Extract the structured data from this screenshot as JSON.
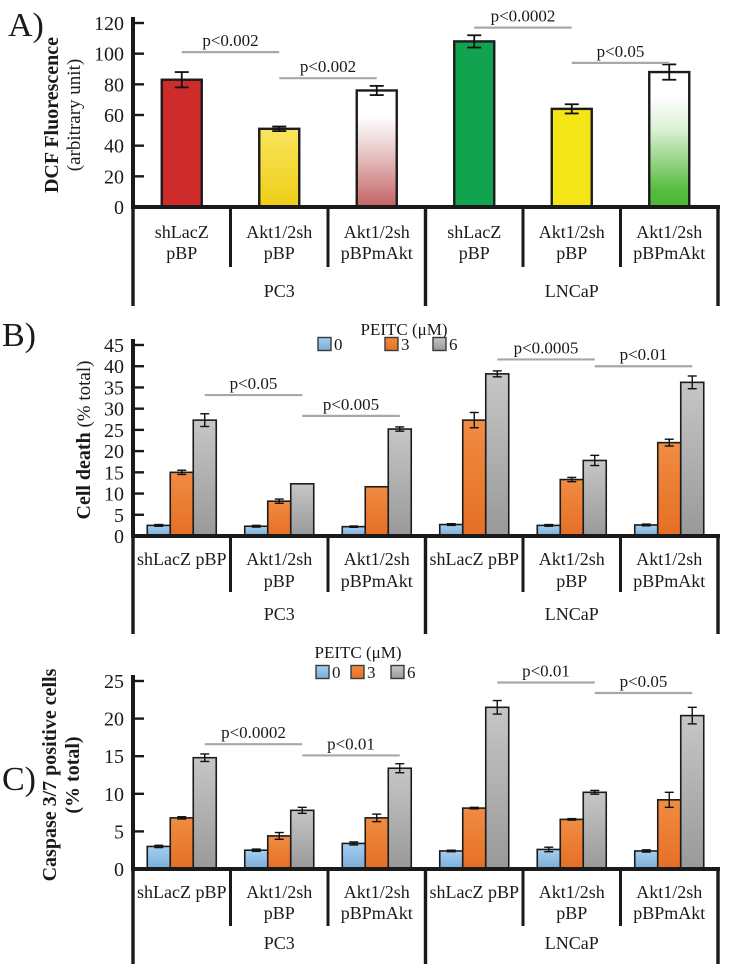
{
  "palette": {
    "red": "#CE2B2B",
    "gold_top": "#F9E45C",
    "gold_bottom": "#EFCE17",
    "yellow": "#F4E616",
    "green": "#12A351",
    "white_red_bottom": "#C46262",
    "white_green_bottom": "#55BC3C",
    "blue_top": "#A6CEEF",
    "blue_bottom": "#78ADD8",
    "orange_top": "#F08C42",
    "orange_bottom": "#E56F24",
    "gray_top": "#C6C6C6",
    "gray_bottom": "#999999",
    "bar_border": "#1C1C1C",
    "sig_line": "#A8A8A8",
    "text": "#1A1A1A"
  },
  "chart_data": [
    {
      "type": "bar",
      "panel_label": "A)",
      "ylabel_lines": [
        {
          "segments": [
            {
              "text": "DCF Fluorescence",
              "bold": true
            }
          ]
        },
        {
          "segments": [
            {
              "text": "(arbitrary unit)",
              "bold": false
            }
          ]
        }
      ],
      "ylim": [
        0,
        120
      ],
      "yticks": [
        0,
        20,
        40,
        60,
        80,
        100,
        120
      ],
      "cell_lines": [
        "PC3",
        "LNCaP"
      ],
      "legend": null,
      "groups": [
        {
          "cell_line": "PC3",
          "label_lines": [
            "shLacZ",
            "pBP"
          ],
          "values": [
            83
          ],
          "errors": [
            5
          ],
          "fills": [
            "red"
          ]
        },
        {
          "cell_line": "PC3",
          "label_lines": [
            "Akt1/2sh",
            "pBP"
          ],
          "values": [
            51
          ],
          "errors": [
            1.5
          ],
          "fills": [
            "gold"
          ]
        },
        {
          "cell_line": "PC3",
          "label_lines": [
            "Akt1/2sh",
            "pBPmAkt"
          ],
          "values": [
            76
          ],
          "errors": [
            3
          ],
          "fills": [
            "white-red"
          ]
        },
        {
          "cell_line": "LNCaP",
          "label_lines": [
            "shLacZ",
            "pBP"
          ],
          "values": [
            108
          ],
          "errors": [
            4
          ],
          "fills": [
            "green"
          ]
        },
        {
          "cell_line": "LNCaP",
          "label_lines": [
            "Akt1/2sh",
            "pBP"
          ],
          "values": [
            64
          ],
          "errors": [
            3
          ],
          "fills": [
            "yellow"
          ]
        },
        {
          "cell_line": "LNCaP",
          "label_lines": [
            "Akt1/2sh",
            "pBPmAkt"
          ],
          "values": [
            88
          ],
          "errors": [
            5
          ],
          "fills": [
            "white-green"
          ]
        }
      ],
      "significance": [
        {
          "text": "p<0.002",
          "from": {
            "group": 0,
            "bar": 0
          },
          "to": {
            "group": 1,
            "bar": 0
          },
          "y": 101
        },
        {
          "text": "p<0.002",
          "from": {
            "group": 1,
            "bar": 0
          },
          "to": {
            "group": 2,
            "bar": 0
          },
          "y": 84
        },
        {
          "text": "p<0.0002",
          "from": {
            "group": 3,
            "bar": 0
          },
          "to": {
            "group": 4,
            "bar": 0
          },
          "y": 117
        },
        {
          "text": "p<0.05",
          "from": {
            "group": 4,
            "bar": 0
          },
          "to": {
            "group": 5,
            "bar": 0
          },
          "y": 94
        }
      ]
    },
    {
      "type": "bar",
      "panel_label": "B)",
      "ylabel_lines": [
        {
          "segments": [
            {
              "text": "Cell death",
              "bold": true
            },
            {
              "text": " (% total)",
              "bold": false
            }
          ]
        }
      ],
      "ylim": [
        0,
        45
      ],
      "yticks": [
        0,
        5,
        10,
        15,
        20,
        25,
        30,
        35,
        40,
        45
      ],
      "cell_lines": [
        "PC3",
        "LNCaP"
      ],
      "legend": {
        "title": "PEITC (μM)",
        "items": [
          {
            "label": "0",
            "fill": "blue"
          },
          {
            "label": "3",
            "fill": "orange"
          },
          {
            "label": "6",
            "fill": "gray"
          }
        ]
      },
      "groups": [
        {
          "cell_line": "PC3",
          "label_lines": [
            "shLacZ pBP"
          ],
          "values": [
            2.5,
            15,
            27.3
          ],
          "errors": [
            0.2,
            0.5,
            1.5
          ],
          "fills": [
            "blue",
            "orange",
            "gray"
          ]
        },
        {
          "cell_line": "PC3",
          "label_lines": [
            "Akt1/2sh",
            "pBP"
          ],
          "values": [
            2.3,
            8.2,
            12.3
          ],
          "errors": [
            0.2,
            0.5,
            0
          ],
          "fills": [
            "blue",
            "orange",
            "gray"
          ]
        },
        {
          "cell_line": "PC3",
          "label_lines": [
            "Akt1/2sh",
            "pBPmAkt"
          ],
          "values": [
            2.2,
            11.6,
            25.2
          ],
          "errors": [
            0.15,
            0,
            0.5
          ],
          "fills": [
            "blue",
            "orange",
            "gray"
          ]
        },
        {
          "cell_line": "LNCaP",
          "label_lines": [
            "shLacZ pBP"
          ],
          "values": [
            2.7,
            27.3,
            38.2
          ],
          "errors": [
            0.2,
            1.8,
            0.7
          ],
          "fills": [
            "blue",
            "orange",
            "gray"
          ]
        },
        {
          "cell_line": "LNCaP",
          "label_lines": [
            "Akt1/2sh",
            "pBP"
          ],
          "values": [
            2.5,
            13.3,
            17.8
          ],
          "errors": [
            0.2,
            0.5,
            1.2
          ],
          "fills": [
            "blue",
            "orange",
            "gray"
          ]
        },
        {
          "cell_line": "LNCaP",
          "label_lines": [
            "Akt1/2sh",
            "pBPmAkt"
          ],
          "values": [
            2.6,
            22,
            36.2
          ],
          "errors": [
            0.2,
            0.8,
            1.5
          ],
          "fills": [
            "blue",
            "orange",
            "gray"
          ]
        }
      ],
      "significance": [
        {
          "text": "p<0.05",
          "from": {
            "group": 0,
            "bar": 2
          },
          "to": {
            "group": 1,
            "bar": 2
          },
          "y": 33.2
        },
        {
          "text": "p<0.005",
          "from": {
            "group": 1,
            "bar": 2
          },
          "to": {
            "group": 2,
            "bar": 2
          },
          "y": 28.3
        },
        {
          "text": "p<0.0005",
          "from": {
            "group": 3,
            "bar": 2
          },
          "to": {
            "group": 4,
            "bar": 2
          },
          "y": 41.6
        },
        {
          "text": "p<0.01",
          "from": {
            "group": 4,
            "bar": 2
          },
          "to": {
            "group": 5,
            "bar": 2
          },
          "y": 40.0
        }
      ]
    },
    {
      "type": "bar",
      "panel_label": "C)",
      "ylabel_lines": [
        {
          "segments": [
            {
              "text": "Caspase 3/7 positive cells",
              "bold": true
            }
          ]
        },
        {
          "segments": [
            {
              "text": "(% total)",
              "bold": true
            }
          ]
        }
      ],
      "ylim": [
        0,
        25
      ],
      "yticks": [
        0,
        5,
        10,
        15,
        20,
        25
      ],
      "cell_lines": [
        "PC3",
        "LNCaP"
      ],
      "legend": {
        "title": "PEITC (μM)",
        "items": [
          {
            "label": "0",
            "fill": "blue"
          },
          {
            "label": "3",
            "fill": "orange"
          },
          {
            "label": "6",
            "fill": "gray"
          }
        ]
      },
      "groups": [
        {
          "cell_line": "PC3",
          "label_lines": [
            "shLacZ pBP"
          ],
          "values": [
            3.0,
            6.8,
            14.8
          ],
          "errors": [
            0.15,
            0.15,
            0.5
          ],
          "fills": [
            "blue",
            "orange",
            "gray"
          ]
        },
        {
          "cell_line": "PC3",
          "label_lines": [
            "Akt1/2sh",
            "pBP"
          ],
          "values": [
            2.5,
            4.4,
            7.8
          ],
          "errors": [
            0.15,
            0.45,
            0.4
          ],
          "fills": [
            "blue",
            "orange",
            "gray"
          ]
        },
        {
          "cell_line": "PC3",
          "label_lines": [
            "Akt1/2sh",
            "pBPmAkt"
          ],
          "values": [
            3.4,
            6.8,
            13.4
          ],
          "errors": [
            0.2,
            0.5,
            0.6
          ],
          "fills": [
            "blue",
            "orange",
            "gray"
          ]
        },
        {
          "cell_line": "LNCaP",
          "label_lines": [
            "shLacZ pBP"
          ],
          "values": [
            2.4,
            8.1,
            21.5
          ],
          "errors": [
            0.1,
            0.1,
            0.9
          ],
          "fills": [
            "blue",
            "orange",
            "gray"
          ]
        },
        {
          "cell_line": "LNCaP",
          "label_lines": [
            "Akt1/2sh",
            "pBP"
          ],
          "values": [
            2.6,
            6.6,
            10.2
          ],
          "errors": [
            0.3,
            0.1,
            0.25
          ],
          "fills": [
            "blue",
            "orange",
            "gray"
          ]
        },
        {
          "cell_line": "LNCaP",
          "label_lines": [
            "Akt1/2sh",
            "pBPmAkt"
          ],
          "values": [
            2.4,
            9.2,
            20.4
          ],
          "errors": [
            0.15,
            1.0,
            1.1
          ],
          "fills": [
            "blue",
            "orange",
            "gray"
          ]
        }
      ],
      "significance": [
        {
          "text": "p<0.0002",
          "from": {
            "group": 0,
            "bar": 2
          },
          "to": {
            "group": 1,
            "bar": 2
          },
          "y": 16.6
        },
        {
          "text": "p<0.01",
          "from": {
            "group": 1,
            "bar": 2
          },
          "to": {
            "group": 2,
            "bar": 2
          },
          "y": 15.1
        },
        {
          "text": "p<0.01",
          "from": {
            "group": 3,
            "bar": 2
          },
          "to": {
            "group": 4,
            "bar": 2
          },
          "y": 24.8
        },
        {
          "text": "p<0.05",
          "from": {
            "group": 4,
            "bar": 2
          },
          "to": {
            "group": 5,
            "bar": 2
          },
          "y": 23.4
        }
      ]
    }
  ]
}
